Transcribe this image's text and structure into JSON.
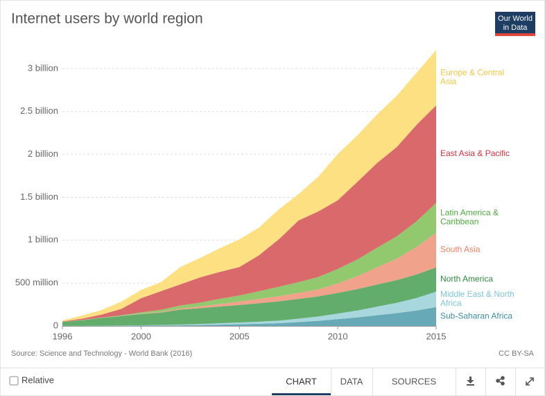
{
  "chart_data": {
    "type": "stacked-area",
    "title": "Internet users by world region",
    "logo": [
      "Our World",
      "in Data"
    ],
    "x": [
      1996,
      1997,
      1998,
      1999,
      2000,
      2001,
      2002,
      2003,
      2004,
      2005,
      2006,
      2007,
      2008,
      2009,
      2010,
      2011,
      2012,
      2013,
      2014,
      2015
    ],
    "xlim": [
      1996,
      2015
    ],
    "xticks": [
      1996,
      2000,
      2005,
      2010,
      2015
    ],
    "ylim": [
      0,
      3250
    ],
    "yticks": [
      0,
      {
        "value": 500,
        "label": "500 million"
      },
      {
        "value": 1000,
        "label": "1 billion"
      },
      {
        "value": 1500,
        "label": "1.5 billion"
      },
      {
        "value": 2000,
        "label": "2 billion"
      },
      {
        "value": 2500,
        "label": "2.5 billion"
      },
      {
        "value": 3000,
        "label": "3 billion"
      }
    ],
    "grid": true,
    "series": [
      {
        "name": "Sub-Saharan Africa",
        "color": "#67a9b6",
        "label_color": "#3a8fa0",
        "values": [
          0.5,
          1,
          1.5,
          2,
          4,
          5,
          7,
          10,
          15,
          20,
          25,
          32,
          45,
          60,
          80,
          100,
          125,
          150,
          180,
          220
        ]
      },
      {
        "name": "Middle East & North Africa",
        "color": "#a9d7de",
        "label_color": "#7dc6d4",
        "values": [
          0.5,
          1,
          2,
          3,
          4,
          6,
          9,
          12,
          16,
          20,
          25,
          30,
          40,
          50,
          65,
          80,
          100,
          120,
          145,
          180
        ]
      },
      {
        "name": "North America",
        "color": "#62ad6b",
        "label_color": "#2f8a3f",
        "values": [
          45,
          65,
          90,
          110,
          130,
          145,
          175,
          185,
          195,
          205,
          215,
          225,
          230,
          235,
          240,
          250,
          258,
          265,
          275,
          283
        ]
      },
      {
        "name": "South Asia",
        "color": "#f0a28b",
        "label_color": "#ee8063",
        "values": [
          0.2,
          0.5,
          1,
          2,
          5,
          8,
          13,
          20,
          30,
          40,
          50,
          60,
          70,
          80,
          110,
          150,
          200,
          250,
          320,
          404
        ]
      },
      {
        "name": "Latin America & Caribbean",
        "color": "#92c96f",
        "label_color": "#4eac3e",
        "values": [
          1,
          2,
          4,
          7,
          16,
          24,
          35,
          45,
          60,
          70,
          90,
          110,
          125,
          145,
          170,
          195,
          230,
          260,
          300,
          348
        ]
      },
      {
        "name": "East Asia & Pacific",
        "color": "#d9696a",
        "label_color": "#d5313b",
        "values": [
          5,
          15,
          35,
          75,
          164,
          216,
          246,
          294,
          314,
          332,
          420,
          553,
          719,
          764,
          800,
          906,
          987,
          1041,
          1124,
          1136
        ]
      },
      {
        "name": "Europe & Central Asia",
        "color": "#fde082",
        "label_color": "#f2c744",
        "values": [
          13,
          37,
          53,
          84,
          97,
          105,
          202,
          226,
          275,
          323,
          323,
          348,
          307,
          404,
          540,
          542,
          566,
          598,
          607,
          646
        ]
      }
    ],
    "source": "Source: Science and Technology - World Bank (2016)",
    "license": "CC BY-SA"
  },
  "controls": {
    "relative": "Relative",
    "tabs": [
      "CHART",
      "DATA",
      "SOURCES"
    ]
  }
}
